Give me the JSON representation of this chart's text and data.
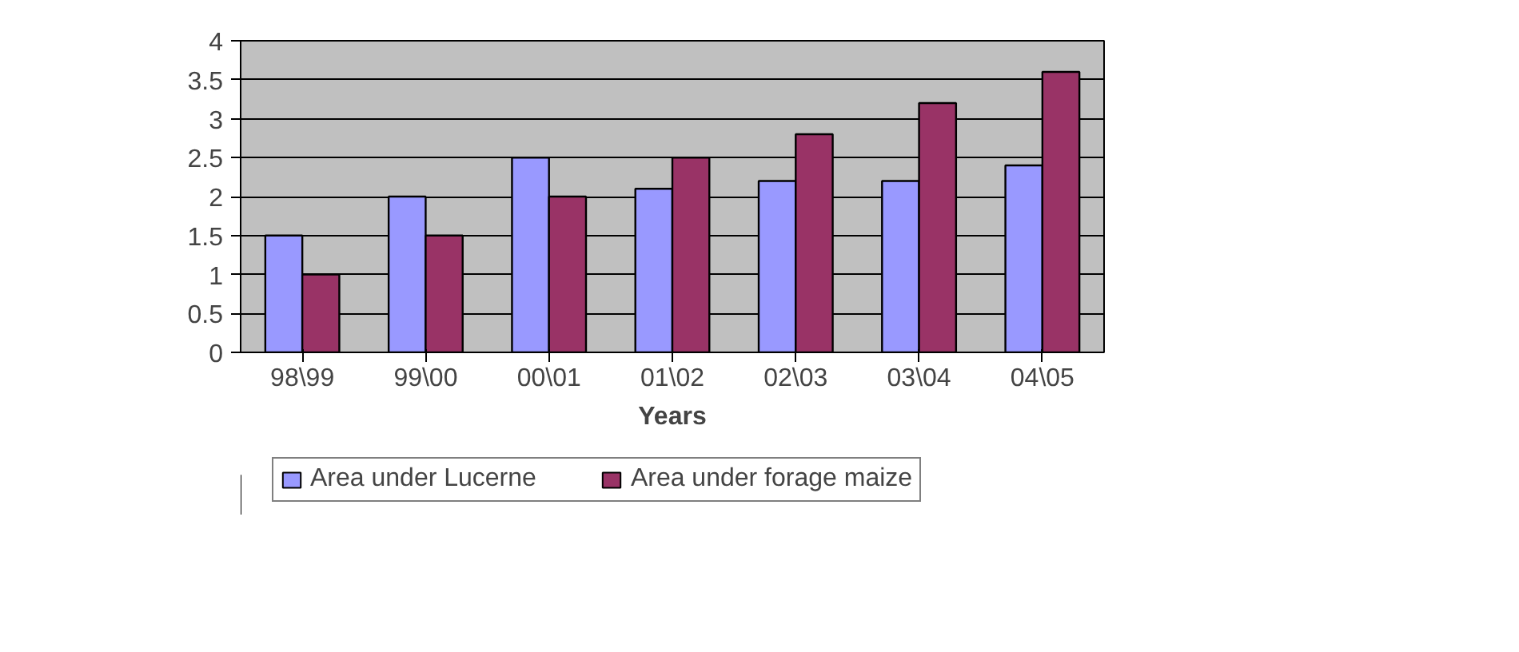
{
  "chart_data": {
    "type": "bar",
    "xlabel": "Years",
    "categories": [
      "98\\99",
      "99\\00",
      "00\\01",
      "01\\02",
      "02\\03",
      "03\\04",
      "04\\05"
    ],
    "series": [
      {
        "name": "Area under Lucerne",
        "color": "#9999ff",
        "values": [
          1.5,
          2,
          2.5,
          2.1,
          2.2,
          2.2,
          2.4
        ]
      },
      {
        "name": "Area under forage maize",
        "color": "#993366",
        "values": [
          1,
          1.5,
          2,
          2.5,
          2.8,
          3.2,
          3.6
        ]
      }
    ],
    "ylim": [
      0,
      4
    ],
    "yticks": [
      0,
      0.5,
      1,
      1.5,
      2,
      2.5,
      3,
      3.5,
      4
    ],
    "grid": "y",
    "legend": "bottom"
  }
}
